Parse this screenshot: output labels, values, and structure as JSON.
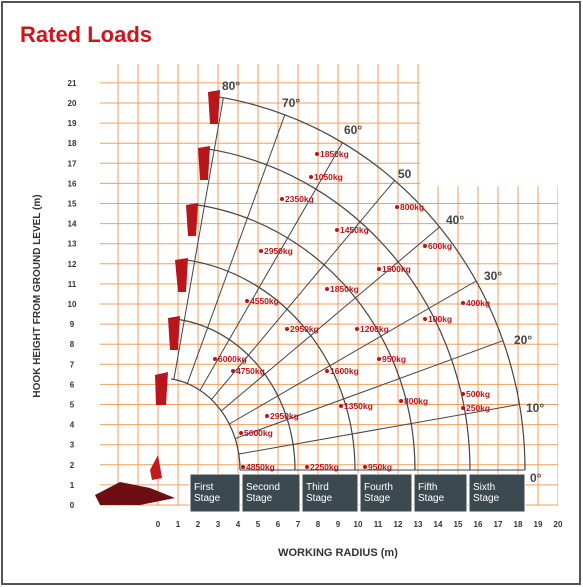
{
  "header": {
    "title": "Rated Loads"
  },
  "diagram": {
    "x_axis_label": "WORKING RADIUS (m)",
    "y_axis_label": "HOOK HEIGHT FROM GROUND LEVEL (m)",
    "x_ticks": [
      0,
      1,
      2,
      3,
      4,
      5,
      6,
      7,
      8,
      9,
      10,
      11,
      12,
      13,
      14,
      15,
      16,
      17,
      18,
      19,
      20
    ],
    "y_ticks": [
      0,
      1,
      2,
      3,
      4,
      5,
      6,
      7,
      8,
      9,
      10,
      11,
      12,
      13,
      14,
      15,
      16,
      17,
      18,
      19,
      20,
      21
    ],
    "angles": [
      "80°",
      "70°",
      "60°",
      "50",
      "40°",
      "30°",
      "20°",
      "10°",
      "0°"
    ],
    "loads": [
      "1850kg",
      "1050kg",
      "2350kg",
      "800kg",
      "1450kg",
      "600kg",
      "2950kg",
      "1500kg",
      "1850kg",
      "4550kg",
      "400kg",
      "100kg",
      "2950kg",
      "1200kg",
      "6000kg",
      "4750kg",
      "950kg",
      "1600kg",
      "500kg",
      "250kg",
      "1350kg",
      "800kg",
      "2950kg",
      "5000kg",
      "4850kg",
      "2250kg",
      "950kg"
    ],
    "stages": [
      [
        "First",
        "Stage"
      ],
      [
        "Second",
        "Stage"
      ],
      [
        "Third",
        "Stage"
      ],
      [
        "Fourth",
        "Stage"
      ],
      [
        "Fifth",
        "Stage"
      ],
      [
        "Sixth",
        "Stage"
      ]
    ]
  }
}
